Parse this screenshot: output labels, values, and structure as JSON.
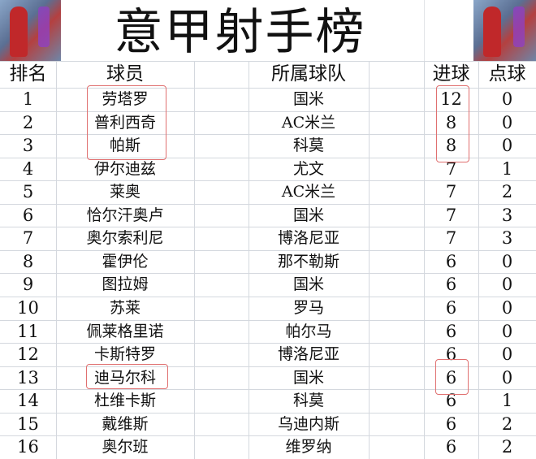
{
  "title": "意甲射手榜",
  "headers": {
    "rank": "排名",
    "player": "球员",
    "team": "所属球队",
    "goals": "进球",
    "penalties": "点球"
  },
  "rows": [
    {
      "rank": "1",
      "player": "劳塔罗",
      "team": "国米",
      "goals": "12",
      "penalties": "0"
    },
    {
      "rank": "2",
      "player": "普利西奇",
      "team": "AC米兰",
      "goals": "8",
      "penalties": "0"
    },
    {
      "rank": "3",
      "player": "帕斯",
      "team": "科莫",
      "goals": "8",
      "penalties": "0"
    },
    {
      "rank": "4",
      "player": "伊尔迪兹",
      "team": "尤文",
      "goals": "7",
      "penalties": "1"
    },
    {
      "rank": "5",
      "player": "莱奥",
      "team": "AC米兰",
      "goals": "7",
      "penalties": "2"
    },
    {
      "rank": "6",
      "player": "恰尔汗奥卢",
      "team": "国米",
      "goals": "7",
      "penalties": "3"
    },
    {
      "rank": "7",
      "player": "奥尔索利尼",
      "team": "博洛尼亚",
      "goals": "7",
      "penalties": "3"
    },
    {
      "rank": "8",
      "player": "霍伊伦",
      "team": "那不勒斯",
      "goals": "6",
      "penalties": "0"
    },
    {
      "rank": "9",
      "player": "图拉姆",
      "team": "国米",
      "goals": "6",
      "penalties": "0"
    },
    {
      "rank": "10",
      "player": "苏莱",
      "team": "罗马",
      "goals": "6",
      "penalties": "0"
    },
    {
      "rank": "11",
      "player": "佩莱格里诺",
      "team": "帕尔马",
      "goals": "6",
      "penalties": "0"
    },
    {
      "rank": "12",
      "player": "卡斯特罗",
      "team": "博洛尼亚",
      "goals": "6",
      "penalties": "0"
    },
    {
      "rank": "13",
      "player": "迪马尔科",
      "team": "国米",
      "goals": "6",
      "penalties": "0"
    },
    {
      "rank": "14",
      "player": "杜维卡斯",
      "team": "科莫",
      "goals": "6",
      "penalties": "1"
    },
    {
      "rank": "15",
      "player": "戴维斯",
      "team": "乌迪内斯",
      "goals": "6",
      "penalties": "2"
    },
    {
      "rank": "16",
      "player": "奥尔班",
      "team": "维罗纳",
      "goals": "6",
      "penalties": "2"
    }
  ],
  "highlight_color": "#e07070"
}
